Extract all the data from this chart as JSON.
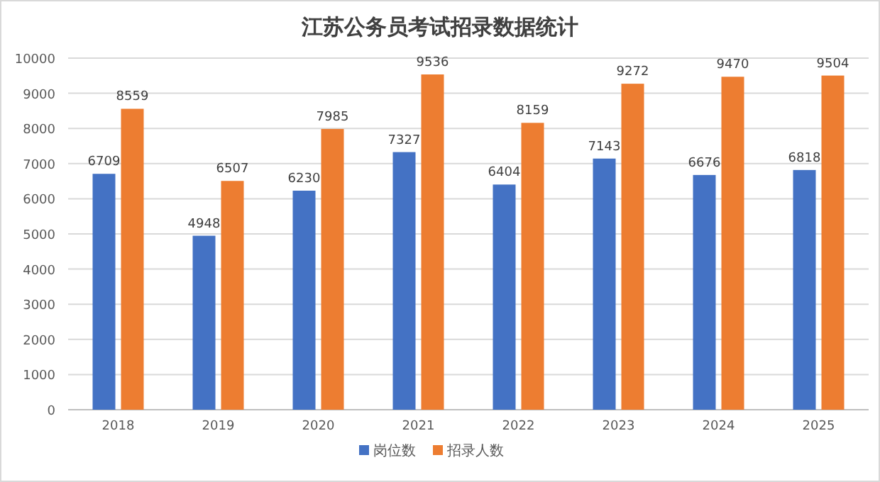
{
  "chart_data": {
    "type": "bar",
    "title": "江苏公务员考试招录数据统计",
    "categories": [
      "2018",
      "2019",
      "2020",
      "2021",
      "2022",
      "2023",
      "2024",
      "2025"
    ],
    "series": [
      {
        "name": "岗位数",
        "color": "#4472c4",
        "values": [
          6709,
          4948,
          6230,
          7327,
          6404,
          7143,
          6676,
          6818
        ]
      },
      {
        "name": "招录人数",
        "color": "#ed7d31",
        "values": [
          8559,
          6507,
          7985,
          9536,
          8159,
          9272,
          9470,
          9504
        ]
      }
    ],
    "ylim": [
      0,
      10000
    ],
    "yticks": [
      0,
      1000,
      2000,
      3000,
      4000,
      5000,
      6000,
      7000,
      8000,
      9000,
      10000
    ],
    "grid": "y",
    "legend": "bottom",
    "data_labels": true
  }
}
